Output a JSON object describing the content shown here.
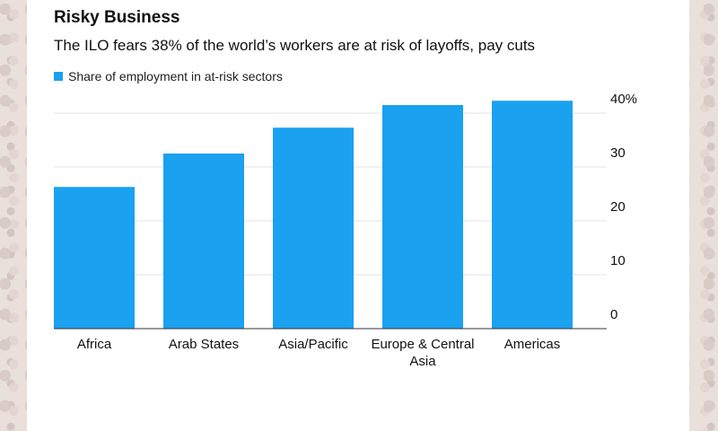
{
  "chart_data": {
    "type": "bar",
    "title": "Risky Business",
    "subtitle": "The ILO fears 38% of the world’s workers are at risk of layoffs, pay cuts",
    "categories": [
      [
        "Africa"
      ],
      [
        "Arab States"
      ],
      [
        "Asia/Pacific"
      ],
      [
        "Europe & Central",
        "Asia"
      ],
      [
        "Americas"
      ]
    ],
    "series": [
      {
        "name": "Share of employment in at-risk sectors",
        "values": [
          26.3,
          32.5,
          37.3,
          41.5,
          42.3
        ]
      }
    ],
    "y_ticks": [
      "0",
      "10",
      "20",
      "30",
      "40%"
    ],
    "ylim": [
      0,
      43
    ],
    "xlabel": "",
    "ylabel": "",
    "grid": true,
    "y_axis_position": "right",
    "legend_position": "top-left",
    "bar_color": "#1aa1f0",
    "grid_color": "#e3e3e3",
    "axis_color": "#333333"
  }
}
